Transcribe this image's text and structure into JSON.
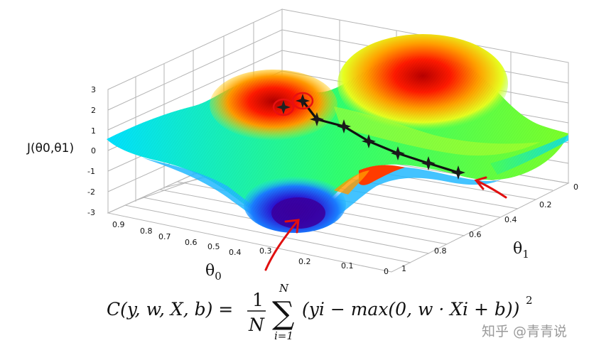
{
  "chart_data": {
    "type": "surface3d",
    "zlabel": "J(θ0,θ1)",
    "xlabel": "θ0",
    "ylabel": "θ1",
    "zticks": [
      "3",
      "2",
      "1",
      "0",
      "-1",
      "-2",
      "-3"
    ],
    "zlim": [
      -3,
      3
    ],
    "theta0_ticks": [
      "0.9",
      "0.8",
      "0.7",
      "0.6",
      "0.5",
      "0.4",
      "0.3",
      "0.2",
      "0.1",
      "0"
    ],
    "theta1_ticks": [
      "0",
      "0.2",
      "0.4",
      "0.6",
      "0.8",
      "1"
    ],
    "descent_path_points": 8,
    "marked_starts": 2,
    "marked_minima_arrows": 2,
    "colormap": [
      "#2a00b0",
      "#0077ff",
      "#00e6ff",
      "#4cff3a",
      "#ffe600",
      "#ff6600",
      "#d80000"
    ]
  },
  "formula": {
    "lhs": "C(y, w, X, b) =",
    "frac_num": "1",
    "frac_den": "N",
    "sum_top": "N",
    "sum_bottom": "i=1",
    "body": "(yi − max(0, w · Xi + b))",
    "exponent": "2"
  },
  "watermark": "知乎 @青青说"
}
